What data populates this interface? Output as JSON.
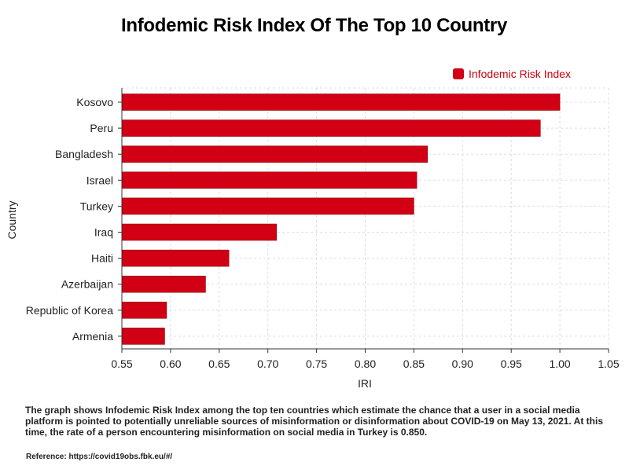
{
  "title": "Infodemic Risk Index Of The Top 10 Country",
  "legend": {
    "label": "Infodemic Risk Index"
  },
  "colors": {
    "bar": "#d10014",
    "legend_text": "#c8000f",
    "grid": "#dddddd",
    "axis": "#333333"
  },
  "caption": "The graph shows Infodemic Risk Index among the top ten countries which estimate the chance that a user in a social media platform is pointed to potentially unreliable sources of misinformation or disinformation about COVID-19 on May 13, 2021. At this time, the rate of a person encountering misinformation on social media in Turkey is 0.850.",
  "reference": "Reference: https://covid19obs.fbk.eu/#/",
  "chart_data": {
    "type": "bar",
    "orientation": "horizontal",
    "title": "Infodemic Risk Index Of The Top 10 Country",
    "xlabel": "IRI",
    "ylabel": "Country",
    "xlim": [
      0.55,
      1.05
    ],
    "xticks": [
      "0.55",
      "0.60",
      "0.65",
      "0.70",
      "0.75",
      "0.80",
      "0.85",
      "0.90",
      "0.95",
      "1.00",
      "1.05"
    ],
    "grid": true,
    "legend_position": "top-right",
    "categories": [
      "Kosovo",
      "Peru",
      "Bangladesh",
      "Israel",
      "Turkey",
      "Iraq",
      "Haiti",
      "Azerbaijan",
      "Republic of Korea",
      "Armenia"
    ],
    "series": [
      {
        "name": "Infodemic Risk Index",
        "values": [
          1.0,
          0.98,
          0.864,
          0.853,
          0.85,
          0.709,
          0.66,
          0.636,
          0.596,
          0.594
        ]
      }
    ]
  }
}
